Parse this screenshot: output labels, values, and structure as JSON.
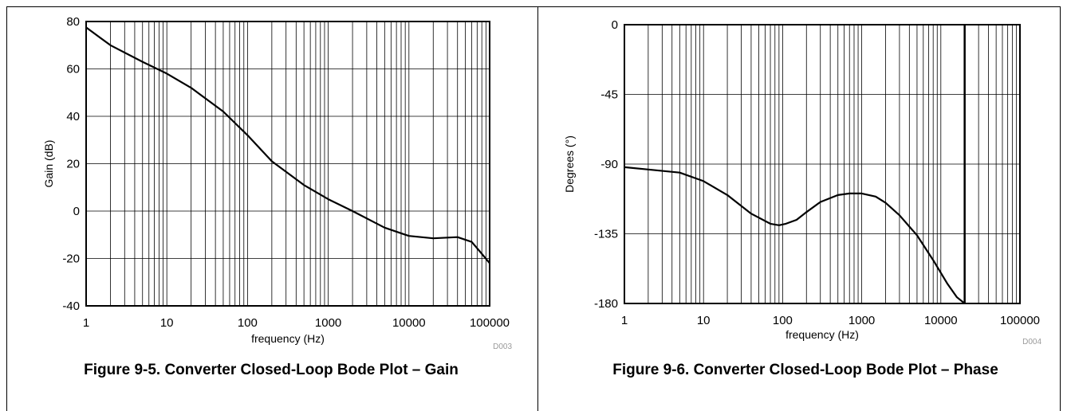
{
  "chart_data": [
    {
      "type": "line",
      "id": "gain",
      "caption": "Figure 9-5. Converter Closed-Loop Bode Plot – Gain",
      "xlabel": "frequency (Hz)",
      "ylabel": "Gain (dB)",
      "code": "D003",
      "x_scale": "log",
      "xlim": [
        1,
        100000
      ],
      "ylim": [
        -40,
        80
      ],
      "x_ticks": [
        1,
        10,
        100,
        1000,
        10000,
        100000
      ],
      "x_tick_labels": [
        "1",
        "10",
        "100",
        "1000",
        "10000",
        "100000"
      ],
      "y_ticks": [
        -40,
        -20,
        0,
        20,
        40,
        60,
        80
      ],
      "y_tick_labels": [
        "-40",
        "-20",
        "0",
        "20",
        "40",
        "60",
        "80"
      ],
      "grid": true,
      "series": [
        {
          "x": [
            1,
            2,
            5,
            10,
            20,
            50,
            100,
            200,
            500,
            1000,
            2000,
            5000,
            10000,
            20000,
            40000,
            60000,
            80000,
            100000
          ],
          "y": [
            77.5,
            70,
            63,
            58,
            52,
            42,
            32,
            21,
            11,
            5,
            0,
            -7,
            -10.5,
            -11.5,
            -11,
            -13,
            -18,
            -22
          ]
        }
      ]
    },
    {
      "type": "line",
      "id": "phase",
      "caption": "Figure 9-6. Converter Closed-Loop Bode Plot – Phase",
      "xlabel": "frequency (Hz)",
      "ylabel": "Degrees (°)",
      "code": "D004",
      "x_scale": "log",
      "xlim": [
        1,
        100000
      ],
      "ylim": [
        -180,
        0
      ],
      "x_ticks": [
        1,
        10,
        100,
        1000,
        10000,
        100000
      ],
      "x_tick_labels": [
        "1",
        "10",
        "100",
        "1000",
        "10000",
        "100000"
      ],
      "y_ticks": [
        -180,
        -135,
        -90,
        -45,
        0
      ],
      "y_tick_labels": [
        "-180",
        "-135",
        "-90",
        "-45",
        "0"
      ],
      "grid": true,
      "series": [
        {
          "x": [
            1,
            2,
            5,
            10,
            20,
            40,
            70,
            90,
            110,
            150,
            200,
            300,
            500,
            700,
            1000,
            1500,
            2000,
            3000,
            5000,
            8000,
            12000,
            16000,
            20000
          ],
          "y": [
            -92,
            -93.5,
            -95.5,
            -101,
            -110,
            -122,
            -128.5,
            -129.5,
            -128.5,
            -126,
            -121,
            -114.5,
            -110,
            -109,
            -109,
            -111,
            -115,
            -123,
            -136,
            -152,
            -167,
            -176,
            -180
          ]
        }
      ],
      "vertical_line_x": 20000
    }
  ]
}
